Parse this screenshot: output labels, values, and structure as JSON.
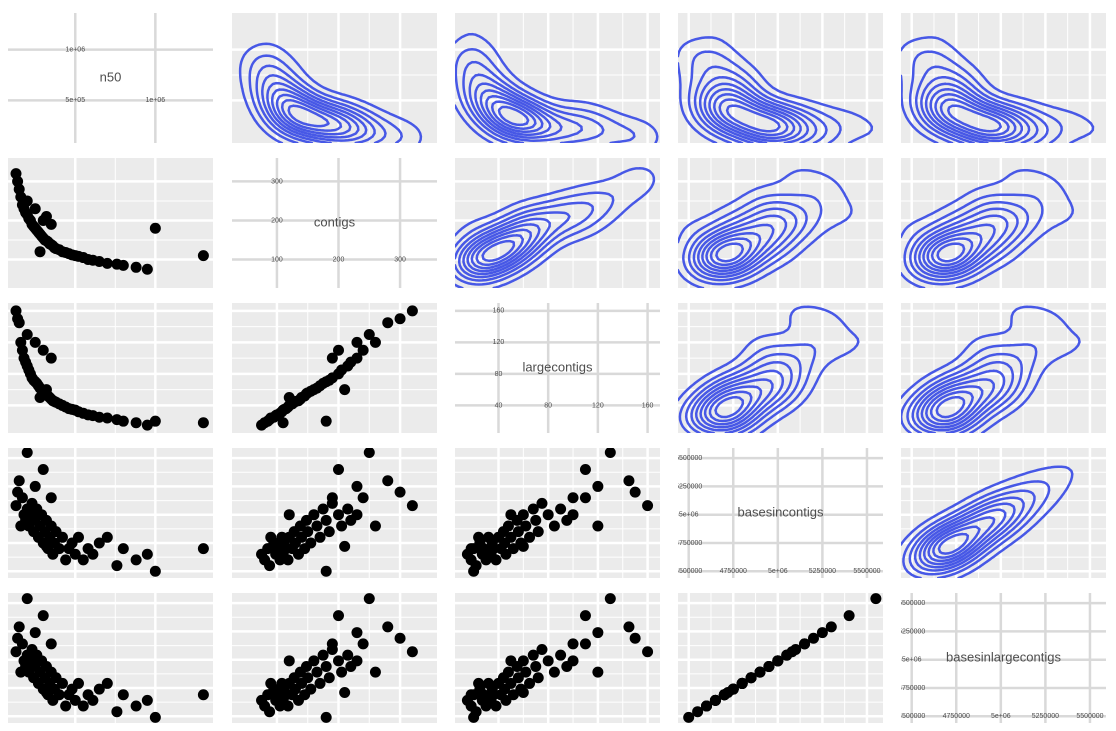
{
  "chart_data": {
    "type": "scatter-matrix",
    "point_color": "#000000",
    "contour_color": "#4758e6",
    "variables": [
      {
        "name": "n50",
        "lim": [
          80000,
          1360000
        ],
        "ticks": [
          {
            "value": 500000,
            "label": "5e+05"
          },
          {
            "value": 1000000,
            "label": "1e+06"
          }
        ],
        "values": [
          130000,
          140000,
          150000,
          160000,
          170000,
          180000,
          190000,
          200000,
          210000,
          220000,
          230000,
          240000,
          250000,
          260000,
          270000,
          280000,
          290000,
          300000,
          310000,
          320000,
          330000,
          340000,
          350000,
          360000,
          370000,
          380000,
          400000,
          420000,
          440000,
          460000,
          480000,
          500000,
          520000,
          550000,
          580000,
          610000,
          650000,
          700000,
          760000,
          800000,
          880000,
          950000,
          1000000,
          1300000,
          200000,
          250000,
          300000,
          350000,
          320000,
          280000
        ]
      },
      {
        "name": "contigs",
        "lim": [
          27,
          360
        ],
        "ticks": [
          100,
          200,
          300
        ],
        "values": [
          320,
          300,
          280,
          260,
          240,
          230,
          220,
          215,
          205,
          200,
          190,
          185,
          180,
          175,
          170,
          165,
          160,
          155,
          150,
          148,
          145,
          140,
          138,
          135,
          130,
          128,
          125,
          120,
          118,
          115,
          112,
          110,
          108,
          105,
          100,
          98,
          95,
          90,
          88,
          85,
          80,
          75,
          180,
          110,
          250,
          230,
          200,
          190,
          210,
          120
        ]
      },
      {
        "name": "largecontigs",
        "lim": [
          5,
          170
        ],
        "ticks": [
          40,
          80,
          120,
          160
        ],
        "values": [
          160,
          150,
          145,
          120,
          110,
          100,
          95,
          90,
          85,
          80,
          75,
          72,
          70,
          68,
          65,
          62,
          60,
          58,
          56,
          55,
          52,
          50,
          48,
          46,
          45,
          44,
          42,
          40,
          38,
          36,
          35,
          34,
          32,
          30,
          28,
          27,
          25,
          24,
          22,
          20,
          18,
          15,
          20,
          18,
          130,
          120,
          110,
          100,
          60,
          50
        ]
      },
      {
        "name": "basesincontigs",
        "lim": [
          4440000,
          5590000
        ],
        "ticks": [
          4500000,
          4750000,
          {
            "value": 5000000,
            "label": "5e+06"
          },
          5250000,
          5500000
        ],
        "values": [
          5080000,
          5200000,
          5300000,
          4900000,
          5150000,
          5000000,
          4950000,
          5050000,
          4900000,
          5000000,
          5100000,
          4850000,
          4950000,
          5050000,
          4800000,
          4900000,
          5000000,
          4750000,
          4850000,
          4950000,
          4700000,
          4800000,
          4900000,
          4650000,
          4750000,
          4850000,
          4700000,
          4800000,
          4600000,
          4700000,
          4750000,
          4650000,
          4800000,
          4600000,
          4700000,
          4650000,
          4750000,
          4800000,
          4550000,
          4700000,
          4600000,
          4650000,
          4500000,
          4700000,
          5550000,
          5250000,
          5400000,
          5150000,
          4720000,
          5000000
        ]
      },
      {
        "name": "basesinlargecontigs",
        "lim": [
          4440000,
          5590000
        ],
        "ticks": [
          4500000,
          4750000,
          {
            "value": 5000000,
            "label": "5e+06"
          },
          5250000,
          5500000
        ],
        "values": [
          5070000,
          5190000,
          5290000,
          4890000,
          5140000,
          4990000,
          4940000,
          5040000,
          4890000,
          4990000,
          5090000,
          4840000,
          4940000,
          5040000,
          4790000,
          4890000,
          4990000,
          4740000,
          4840000,
          4940000,
          4690000,
          4790000,
          4890000,
          4640000,
          4740000,
          4840000,
          4690000,
          4790000,
          4590000,
          4690000,
          4740000,
          4640000,
          4790000,
          4590000,
          4690000,
          4640000,
          4740000,
          4790000,
          4540000,
          4690000,
          4590000,
          4640000,
          4490000,
          4690000,
          5540000,
          5240000,
          5390000,
          5140000,
          4710000,
          4990000
        ]
      }
    ]
  }
}
